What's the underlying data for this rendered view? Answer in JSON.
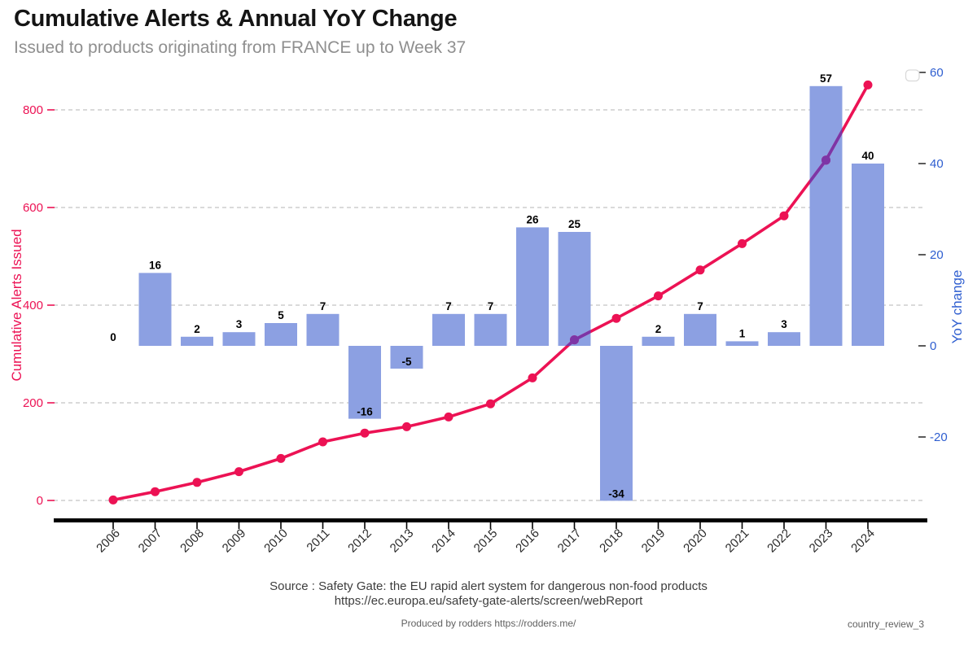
{
  "header": {
    "title": "Cumulative Alerts & Annual YoY Change",
    "subtitle": "Issued to products originating from FRANCE up to Week 37"
  },
  "chart_data": {
    "type": "bar+line combo, dual axis",
    "categories": [
      "2006",
      "2007",
      "2008",
      "2009",
      "2010",
      "2011",
      "2012",
      "2013",
      "2014",
      "2015",
      "2016",
      "2017",
      "2018",
      "2019",
      "2020",
      "2021",
      "2022",
      "2023",
      "2024"
    ],
    "series": [
      {
        "name": "YoY change",
        "type": "bar",
        "axis": "right",
        "values": [
          0,
          16,
          2,
          3,
          5,
          7,
          -16,
          -5,
          7,
          7,
          26,
          25,
          -34,
          2,
          7,
          1,
          3,
          57,
          40
        ],
        "data_labels_shown": true,
        "color": "#8ca0e2"
      },
      {
        "name": "Cumulative Alerts Issued",
        "type": "line",
        "axis": "left",
        "values": [
          1,
          18,
          37,
          59,
          86,
          120,
          138,
          151,
          171,
          198,
          251,
          329,
          373,
          419,
          472,
          526,
          583,
          697,
          851
        ],
        "marker": "circle",
        "color": "#ec1254",
        "overlap_color_on_bars": "#7d35a6"
      }
    ],
    "left_axis": {
      "label": "Cumulative Alerts Issued",
      "ticks": [
        0,
        200,
        400,
        600,
        800
      ],
      "approx_range": [
        -42,
        883
      ],
      "color": "#ec1254"
    },
    "right_axis": {
      "label": "YoY change",
      "ticks": [
        -20,
        0,
        20,
        40,
        60
      ],
      "approx_range": [
        -38,
        61
      ],
      "color": "#2e5ed0"
    },
    "grid": {
      "horizontal_dashed_at_left_ticks": true,
      "color": "#b5b5b5"
    },
    "legend": {
      "visible": true,
      "position": "top-right",
      "content": "empty box"
    },
    "x_axis": {
      "tick_label_rotation_deg": 45,
      "baseline_color": "#000000"
    }
  },
  "colors": {
    "bar": "#8ca0e2",
    "line": "#ec1254",
    "overlap_purple": "#7d35a6",
    "left_axis_pink": "#ec1254",
    "right_axis_blue": "#2e5ed0",
    "grid": "#b5b5b5",
    "year_label": "#2a2a2a",
    "bar_label": "#000000"
  },
  "source": {
    "line1": "Source : Safety Gate: the EU rapid alert system for dangerous non-food products",
    "line2": "https://ec.europa.eu/safety-gate-alerts/screen/webReport"
  },
  "footer": {
    "produced_by": "Produced by rodders https://rodders.me/",
    "doc_ref": "country_review_3"
  }
}
